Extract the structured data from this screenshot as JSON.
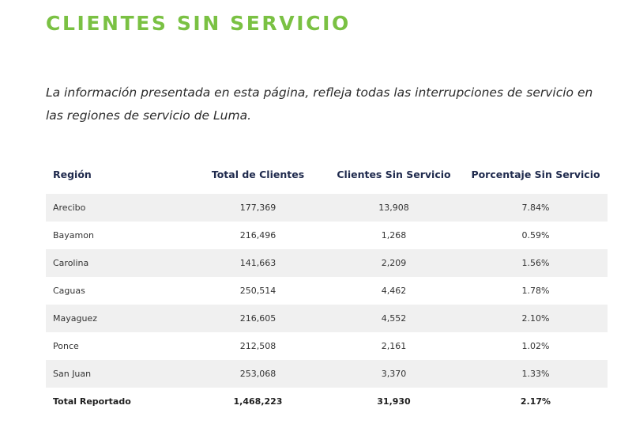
{
  "page": {
    "title": "CLIENTES SIN SERVICIO",
    "intro": "La información presentada en esta página, refleja todas las interrupciones de servicio en las regiones de servicio de Luma."
  },
  "table": {
    "headers": {
      "region": "Región",
      "total_clientes": "Total de Clientes",
      "sin_servicio": "Clientes Sin Servicio",
      "porcentaje": "Porcentaje Sin Servicio"
    },
    "rows": [
      {
        "region": "Arecibo",
        "total": "177,369",
        "sin": "13,908",
        "pct": "7.84%"
      },
      {
        "region": "Bayamon",
        "total": "216,496",
        "sin": "1,268",
        "pct": "0.59%"
      },
      {
        "region": "Carolina",
        "total": "141,663",
        "sin": "2,209",
        "pct": "1.56%"
      },
      {
        "region": "Caguas",
        "total": "250,514",
        "sin": "4,462",
        "pct": "1.78%"
      },
      {
        "region": "Mayaguez",
        "total": "216,605",
        "sin": "4,552",
        "pct": "2.10%"
      },
      {
        "region": "Ponce",
        "total": "212,508",
        "sin": "2,161",
        "pct": "1.02%"
      },
      {
        "region": "San Juan",
        "total": "253,068",
        "sin": "3,370",
        "pct": "1.33%"
      }
    ],
    "total": {
      "region": "Total Reportado",
      "total": "1,468,223",
      "sin": "31,930",
      "pct": "2.17%"
    }
  },
  "colors": {
    "title": "#7ac143",
    "header_text": "#1f2a4d",
    "stripe": "#f0f0f0"
  }
}
